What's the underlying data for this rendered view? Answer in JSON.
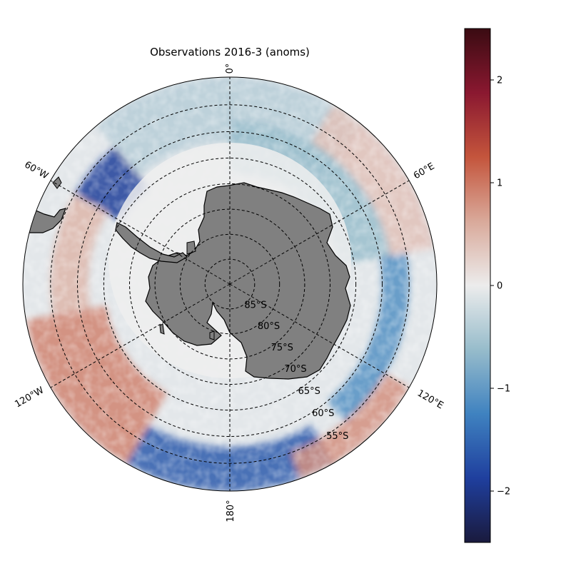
{
  "title": "Observations 2016-3 (anoms)",
  "meridian_labels": {
    "deg0": "0°",
    "deg60e": "60°E",
    "deg120e": "120°E",
    "deg180": "180°",
    "deg120w": "120°W",
    "deg60w": "60°W"
  },
  "latitude_labels": [
    "85°S",
    "80°S",
    "75°S",
    "70°S",
    "65°S",
    "60°S",
    "55°S"
  ],
  "colorbar": {
    "min": -2.5,
    "max": 2.5,
    "ticks": [
      {
        "value": 2,
        "label": "2"
      },
      {
        "value": 1,
        "label": "1"
      },
      {
        "value": 0,
        "label": "0"
      },
      {
        "value": -1,
        "label": "−1"
      },
      {
        "value": -2,
        "label": "−2"
      }
    ],
    "colormap": [
      "#1a1a3d",
      "#1f3f9e",
      "#3f82c0",
      "#97bccb",
      "#ececec",
      "#d9a99a",
      "#c4553c",
      "#8a1830",
      "#3a0b12"
    ]
  },
  "colors": {
    "land": "#808080",
    "sea_ice": "#f2f2f2",
    "coast": "#000000",
    "grid": "#000000"
  },
  "map_data": {
    "projection": "south polar stereographic",
    "latitude_circles_deg_s": [
      85,
      80,
      75,
      70,
      65,
      60,
      55
    ],
    "meridians_deg": [
      0,
      60,
      120,
      180,
      -120,
      -60
    ],
    "outer_boundary_deg_s": 50,
    "field": "sea surface temperature anomaly (colored shading)",
    "anomaly_bands": [
      {
        "lon_start": 80,
        "lon_end": 140,
        "lat_min": -60,
        "lat_max": -55,
        "value": -1.1
      },
      {
        "lon_start": 150,
        "lon_end": 210,
        "lat_min": -58,
        "lat_max": -50,
        "value": -1.6
      },
      {
        "lon_start": -150,
        "lon_end": -100,
        "lat_min": -65,
        "lat_max": -50,
        "value": 0.9
      },
      {
        "lon_start": -100,
        "lon_end": -60,
        "lat_min": -62,
        "lat_max": -55,
        "value": 0.5
      },
      {
        "lon_start": -60,
        "lon_end": -40,
        "lat_min": -65,
        "lat_max": -55,
        "value": -1.9
      },
      {
        "lon_start": -40,
        "lon_end": 40,
        "lat_min": -62,
        "lat_max": -50,
        "value": -0.4
      },
      {
        "lon_start": 30,
        "lon_end": 80,
        "lat_min": -58,
        "lat_max": -50,
        "value": 0.4
      },
      {
        "lon_start": 0,
        "lon_end": 80,
        "lat_min": -68,
        "lat_max": -58,
        "value": -0.6
      },
      {
        "lon_start": 120,
        "lon_end": 160,
        "lat_min": -55,
        "lat_max": -50,
        "value": 0.8
      }
    ]
  }
}
